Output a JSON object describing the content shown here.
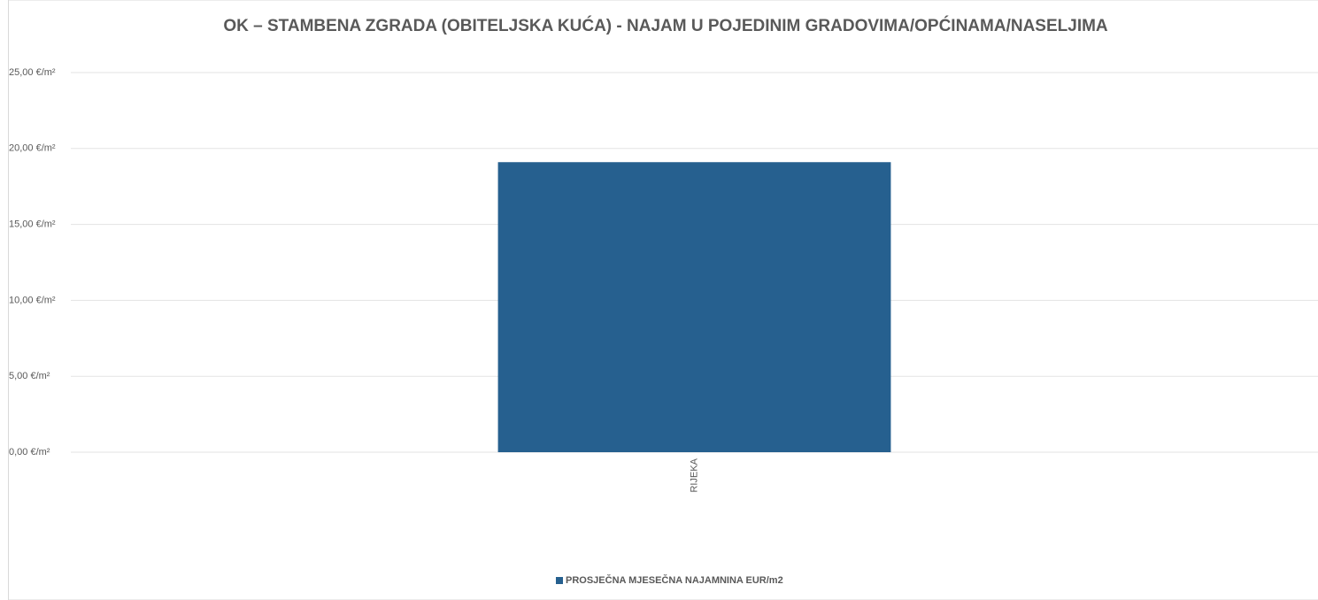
{
  "chart_data": {
    "type": "bar",
    "title": "OK – STAMBENA ZGRADA (OBITELJSKA KUĆA) - NAJAM U POJEDINIM GRADOVIMA/OPĆINAMA/NASELJIMA",
    "categories": [
      "RIJEKA"
    ],
    "series": [
      {
        "name": "PROSJEČNA MJESEČNA NAJAMNINA EUR/m2",
        "color": "#26608f",
        "values": [
          19.1
        ]
      }
    ],
    "ylim": [
      0,
      25
    ],
    "yticks": [
      {
        "value": 0,
        "label": "0,00 €/m²"
      },
      {
        "value": 5,
        "label": "5,00 €/m²"
      },
      {
        "value": 10,
        "label": "10,00 €/m²"
      },
      {
        "value": 15,
        "label": "15,00 €/m²"
      },
      {
        "value": 20,
        "label": "20,00 €/m²"
      },
      {
        "value": 25,
        "label": "25,00 €/m²"
      }
    ],
    "grid": true,
    "legend": "bottom"
  }
}
